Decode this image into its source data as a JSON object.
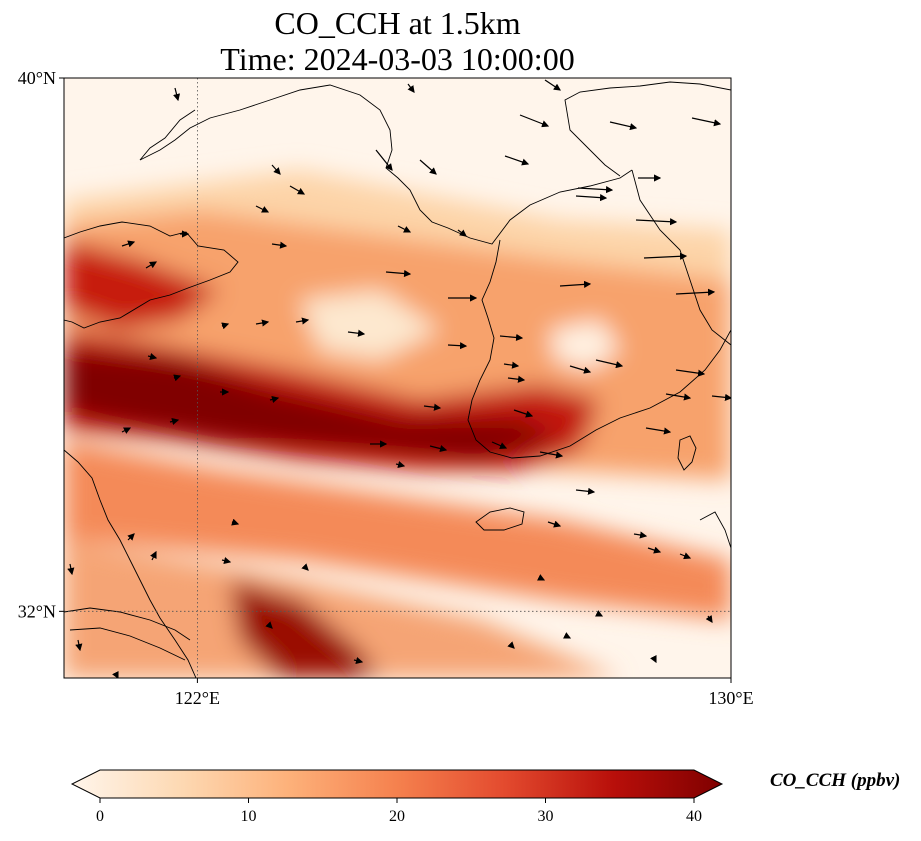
{
  "title": {
    "line1": "CO_CCH at 1.5km",
    "line2": "Time: 2024-03-03 10:00:00"
  },
  "map": {
    "region": "Yellow Sea / Korean Peninsula",
    "lon_range": [
      120,
      130
    ],
    "lat_range": [
      31,
      40
    ],
    "lat_ticks": [
      {
        "value": 40,
        "label": "40°N"
      },
      {
        "value": 32,
        "label": "32°N"
      }
    ],
    "lon_ticks": [
      {
        "value": 122,
        "label": "122°E"
      },
      {
        "value": 130,
        "label": "130°E"
      }
    ],
    "gridlines": "dotted",
    "overlay": "wind vectors"
  },
  "colorbar": {
    "label": "CO_CCH (ppbv)",
    "min": 0,
    "max": 40,
    "ticks": [
      "0",
      "10",
      "20",
      "30",
      "40"
    ],
    "extend": "both",
    "colormap": [
      "#fff5eb",
      "#fdd9b3",
      "#fdb17a",
      "#f5814e",
      "#e34a2e",
      "#b80f0a",
      "#7f0000"
    ]
  }
}
